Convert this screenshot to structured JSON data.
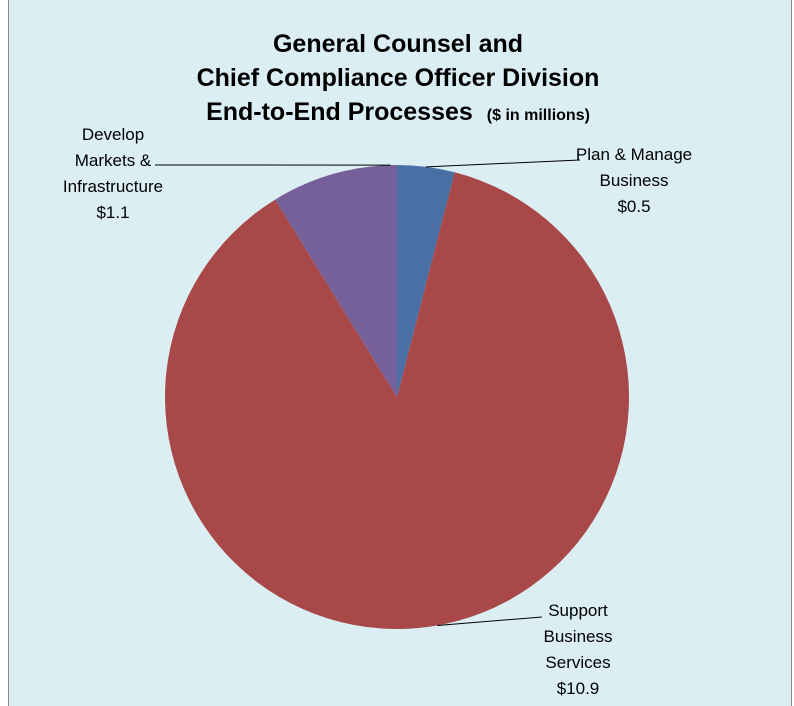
{
  "chart_data": {
    "type": "pie",
    "title": [
      "General Counsel and",
      "Chief Compliance Officer Division",
      "End-to-End Processes"
    ],
    "subtitle": "($ in millions)",
    "slices": [
      {
        "label": [
          "Plan & Manage",
          "Business"
        ],
        "value_label": "$0.5",
        "value": 0.5,
        "color": "#4a6fa5"
      },
      {
        "label": [
          "Support",
          "Business",
          "Services"
        ],
        "value_label": "$10.9",
        "value": 10.9,
        "color": "#a84848"
      },
      {
        "label": [
          "Develop",
          "Markets &",
          "Infrastructure"
        ],
        "value_label": "$1.1",
        "value": 1.1,
        "color": "#76609a"
      }
    ],
    "start_angle": "12 o'clock",
    "direction": "clockwise",
    "legend": "none"
  }
}
